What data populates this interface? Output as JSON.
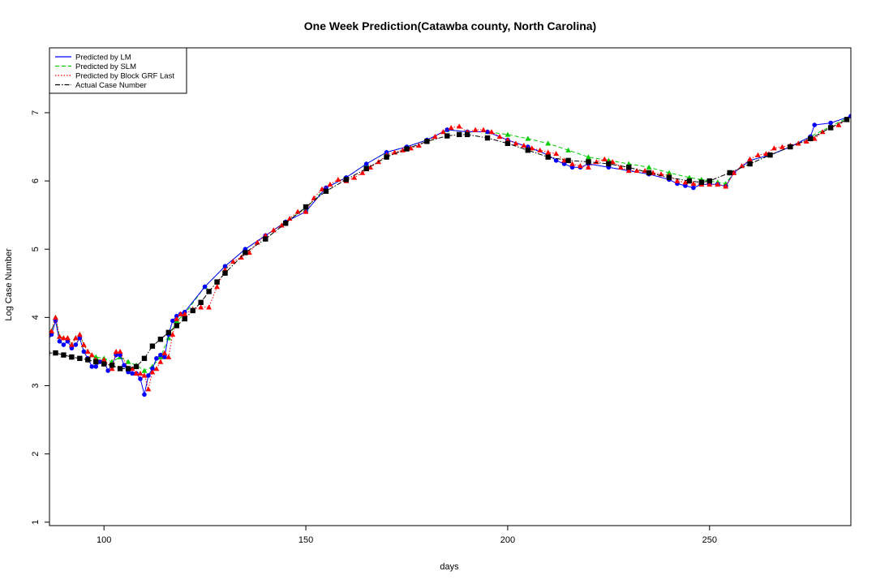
{
  "chart_data": {
    "type": "line",
    "title": "One Week Prediction(Catawba county, North Carolina)",
    "xlabel": "days",
    "ylabel": "Log Case Number",
    "xlim": [
      86.5,
      285
    ],
    "ylim": [
      0.95,
      7.95
    ],
    "x_ticks": [
      100,
      150,
      200,
      250
    ],
    "y_ticks": [
      1,
      2,
      3,
      4,
      5,
      6,
      7
    ],
    "legend_position": "top-left",
    "series": [
      {
        "name": "Predicted by LM",
        "color": "#0000ff",
        "line_style": "solid",
        "marker": "circle",
        "x": [
          86,
          87,
          88,
          89,
          90,
          91,
          92,
          93,
          94,
          95,
          96,
          97,
          98,
          99,
          100,
          101,
          102,
          103,
          104,
          105,
          106,
          107,
          108,
          109,
          110,
          111,
          112,
          113,
          114,
          115,
          116,
          117,
          118,
          119,
          120,
          125,
          130,
          135,
          140,
          145,
          150,
          155,
          160,
          165,
          170,
          175,
          180,
          185,
          190,
          195,
          200,
          205,
          210,
          212,
          214,
          216,
          218,
          220,
          225,
          230,
          235,
          240,
          242,
          244,
          246,
          248,
          250,
          252,
          254,
          256,
          260,
          265,
          270,
          275,
          276,
          280,
          285
        ],
        "y": [
          3.65,
          3.75,
          3.95,
          3.65,
          3.6,
          3.65,
          3.55,
          3.6,
          3.7,
          3.5,
          3.4,
          3.28,
          3.28,
          3.35,
          3.35,
          3.22,
          3.3,
          3.45,
          3.45,
          3.3,
          3.2,
          3.18,
          3.18,
          3.1,
          2.87,
          3.15,
          3.25,
          3.4,
          3.45,
          3.42,
          3.75,
          3.95,
          4.02,
          4.05,
          4.08,
          4.45,
          4.75,
          5.0,
          5.2,
          5.4,
          5.55,
          5.9,
          6.05,
          6.25,
          6.42,
          6.5,
          6.6,
          6.75,
          6.72,
          6.72,
          6.6,
          6.5,
          6.38,
          6.3,
          6.25,
          6.2,
          6.2,
          6.25,
          6.2,
          6.15,
          6.1,
          6.02,
          5.96,
          5.93,
          5.9,
          5.95,
          5.95,
          5.95,
          5.92,
          6.12,
          6.3,
          6.38,
          6.5,
          6.65,
          6.82,
          6.85,
          6.95
        ]
      },
      {
        "name": "Predicted by SLM",
        "color": "#00cc00",
        "line_style": "dashed",
        "marker": "triangle",
        "x": [
          86,
          87,
          88,
          89,
          90,
          91,
          92,
          93,
          94,
          95,
          96,
          97,
          98,
          100,
          102,
          104,
          106,
          108,
          110,
          112,
          114,
          116,
          118,
          120,
          125,
          130,
          135,
          140,
          145,
          150,
          155,
          160,
          165,
          170,
          175,
          180,
          185,
          190,
          195,
          200,
          205,
          210,
          215,
          220,
          225,
          230,
          235,
          240,
          245,
          248,
          250,
          252,
          254,
          256,
          260,
          265,
          270,
          275,
          280,
          285
        ],
        "y": [
          3.65,
          3.8,
          4.0,
          3.72,
          3.7,
          3.7,
          3.6,
          3.7,
          3.75,
          3.6,
          3.5,
          3.45,
          3.42,
          3.4,
          3.35,
          3.42,
          3.35,
          3.3,
          3.22,
          3.28,
          3.42,
          3.7,
          3.95,
          4.05,
          4.45,
          4.75,
          5.0,
          5.2,
          5.4,
          5.6,
          5.9,
          6.05,
          6.25,
          6.42,
          6.5,
          6.6,
          6.75,
          6.72,
          6.72,
          6.68,
          6.62,
          6.55,
          6.45,
          6.35,
          6.3,
          6.25,
          6.2,
          6.12,
          6.05,
          6.02,
          6.0,
          5.98,
          5.96,
          6.12,
          6.3,
          6.38,
          6.5,
          6.65,
          6.8,
          6.95
        ]
      },
      {
        "name": "Predicted by Block GRF Last",
        "color": "#ff0000",
        "line_style": "dotted",
        "marker": "triangle",
        "x": [
          86,
          87,
          88,
          89,
          90,
          91,
          92,
          93,
          94,
          95,
          96,
          97,
          98,
          100,
          102,
          103,
          104,
          106,
          107,
          108,
          109,
          110,
          111,
          112,
          113,
          114,
          115,
          116,
          117,
          118,
          119,
          120,
          122,
          124,
          126,
          128,
          130,
          132,
          134,
          136,
          138,
          140,
          142,
          144,
          146,
          148,
          150,
          152,
          154,
          156,
          158,
          160,
          162,
          164,
          166,
          168,
          170,
          172,
          174,
          176,
          178,
          180,
          182,
          184,
          186,
          188,
          190,
          192,
          194,
          196,
          198,
          200,
          202,
          204,
          206,
          208,
          210,
          212,
          214,
          216,
          218,
          220,
          222,
          224,
          226,
          228,
          230,
          232,
          234,
          236,
          238,
          240,
          242,
          244,
          246,
          248,
          250,
          252,
          254,
          256,
          258,
          260,
          262,
          264,
          266,
          268,
          270,
          272,
          274,
          276,
          278,
          280,
          282,
          284
        ],
        "y": [
          3.65,
          3.8,
          4.0,
          3.72,
          3.7,
          3.7,
          3.6,
          3.7,
          3.75,
          3.6,
          3.5,
          3.45,
          3.38,
          3.38,
          3.25,
          3.5,
          3.5,
          3.25,
          3.25,
          3.18,
          3.18,
          3.15,
          2.95,
          3.2,
          3.25,
          3.35,
          3.48,
          3.42,
          3.75,
          3.98,
          4.05,
          4.05,
          4.12,
          4.15,
          4.15,
          4.45,
          4.7,
          4.82,
          4.88,
          4.95,
          5.1,
          5.2,
          5.28,
          5.35,
          5.45,
          5.55,
          5.55,
          5.75,
          5.88,
          5.95,
          6.02,
          6.0,
          6.05,
          6.12,
          6.2,
          6.28,
          6.38,
          6.42,
          6.45,
          6.48,
          6.52,
          6.58,
          6.65,
          6.72,
          6.78,
          6.8,
          6.72,
          6.75,
          6.75,
          6.72,
          6.65,
          6.6,
          6.55,
          6.52,
          6.48,
          6.45,
          6.42,
          6.4,
          6.3,
          6.25,
          6.22,
          6.2,
          6.28,
          6.32,
          6.28,
          6.2,
          6.15,
          6.15,
          6.15,
          6.12,
          6.1,
          6.08,
          6.0,
          5.98,
          5.96,
          5.95,
          5.95,
          5.95,
          5.92,
          6.12,
          6.22,
          6.32,
          6.38,
          6.4,
          6.48,
          6.5,
          6.52,
          6.55,
          6.58,
          6.62,
          6.72,
          6.78,
          6.82,
          6.9
        ]
      },
      {
        "name": "Actual Case Number",
        "color": "#000000",
        "line_style": "dashdot",
        "marker": "square",
        "x": [
          86,
          88,
          90,
          92,
          94,
          96,
          98,
          100,
          102,
          104,
          106,
          108,
          110,
          112,
          114,
          116,
          118,
          120,
          122,
          124,
          126,
          128,
          130,
          135,
          140,
          145,
          150,
          155,
          160,
          165,
          170,
          175,
          180,
          185,
          188,
          190,
          195,
          200,
          205,
          210,
          215,
          220,
          225,
          230,
          235,
          240,
          245,
          248,
          250,
          255,
          260,
          265,
          270,
          275,
          280,
          284
        ],
        "y": [
          3.48,
          3.48,
          3.45,
          3.42,
          3.4,
          3.38,
          3.35,
          3.32,
          3.3,
          3.25,
          3.25,
          3.28,
          3.4,
          3.58,
          3.68,
          3.78,
          3.88,
          3.98,
          4.1,
          4.22,
          4.38,
          4.52,
          4.65,
          4.95,
          5.15,
          5.38,
          5.62,
          5.85,
          6.02,
          6.18,
          6.35,
          6.47,
          6.58,
          6.66,
          6.68,
          6.68,
          6.63,
          6.55,
          6.45,
          6.35,
          6.3,
          6.28,
          6.25,
          6.2,
          6.12,
          6.05,
          6.0,
          5.98,
          6.0,
          6.12,
          6.25,
          6.38,
          6.5,
          6.62,
          6.78,
          6.9
        ]
      }
    ]
  }
}
